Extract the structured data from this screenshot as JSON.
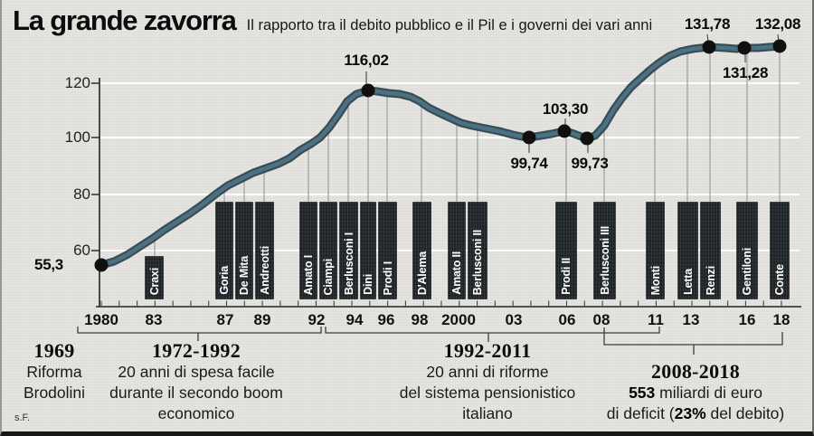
{
  "header": {
    "title": "La grande zavorra",
    "subtitle": "Il rapporto tra il debito pubblico e il Pil e i governi dei vari anni"
  },
  "colors": {
    "line_core": "#4b7182",
    "line_edge": "#263d47",
    "dot": "#101010",
    "bar": "#22282c",
    "bar_text": "#ffffff",
    "background": "#e6e4e0"
  },
  "y_axis": {
    "ticks": [
      "120",
      "100",
      "80",
      "60"
    ]
  },
  "x_axis": {
    "ticks": [
      "1980",
      "83",
      "87",
      "89",
      "92",
      "94",
      "96",
      "98",
      "2000",
      "03",
      "06",
      "08",
      "11",
      "13",
      "16",
      "18"
    ]
  },
  "governments": [
    "Craxi",
    "Goria",
    "De Mita",
    "Andreotti",
    "Amato I",
    "Ciampi",
    "Berlusconi I",
    "Dini",
    "Prodi I",
    "D'Alema",
    "Amato II",
    "Berlusconi II",
    "Prodi II",
    "Berlusconi III",
    "Monti",
    "Letta",
    "Renzi",
    "Gentiloni",
    "Conte"
  ],
  "annotations": [
    {
      "heading": "1969",
      "line1": "Riforma",
      "line2": "Brodolini"
    },
    {
      "heading": "1972-1992",
      "line1": "20 anni di spesa facile",
      "line2": "durante il secondo boom",
      "line3": "economico"
    },
    {
      "heading": "1992-2011",
      "line1": "20 anni di riforme",
      "line2": "del sistema pensionistico",
      "line3": "italiano"
    },
    {
      "heading": "2008-2018",
      "bold1": "553",
      "rest1": " miliardi di euro",
      "pre2": "di deficit (",
      "bold2": "23%",
      "post2": " del debito)"
    }
  ],
  "credit": "s.F.",
  "chart_data": {
    "type": "line",
    "title": "La grande zavorra",
    "subtitle": "Il rapporto tra il debito pubblico e il Pil e i governi dei vari anni",
    "xlabel": "",
    "ylabel": "",
    "ylim": [
      50,
      135
    ],
    "yticks": [
      60,
      80,
      100,
      120
    ],
    "xtick_labels": [
      "1980",
      "83",
      "87",
      "89",
      "92",
      "94",
      "96",
      "98",
      "2000",
      "03",
      "06",
      "08",
      "11",
      "13",
      "16",
      "18"
    ],
    "grid": true,
    "x": [
      1980,
      1981,
      1982,
      1983,
      1984,
      1985,
      1986,
      1987,
      1988,
      1989,
      1990,
      1991,
      1992,
      1993,
      1994,
      1995,
      1996,
      1997,
      1998,
      1999,
      2000,
      2001,
      2002,
      2003,
      2004,
      2005,
      2006,
      2007,
      2008,
      2009,
      2010,
      2011,
      2012,
      2013,
      2014,
      2015,
      2016,
      2017,
      2018
    ],
    "y": [
      55.3,
      56.9,
      61.3,
      65.0,
      69.5,
      73.6,
      78.0,
      82.7,
      85.8,
      88.4,
      90.9,
      95.0,
      98.7,
      105.6,
      113.5,
      116.02,
      115.1,
      114.4,
      111.9,
      108.2,
      105.0,
      103.5,
      102.2,
      100.9,
      99.74,
      100.6,
      103.3,
      99.73,
      102.5,
      112.9,
      119.2,
      124.5,
      128.6,
      130.2,
      131.78,
      131.5,
      131.28,
      131.9,
      132.08
    ],
    "y_is_estimated_except_labeled": true,
    "labeled_points": [
      {
        "x": 1980,
        "value": 55.3,
        "label": "55,3"
      },
      {
        "x": 1995,
        "value": 116.02,
        "label": "116,02"
      },
      {
        "x": 2004,
        "value": 99.74,
        "label": "99,74"
      },
      {
        "x": 2006,
        "value": 103.3,
        "label": "103,30"
      },
      {
        "x": 2007,
        "value": 99.73,
        "label": "99,73"
      },
      {
        "x": 2014,
        "value": 131.78,
        "label": "131,78"
      },
      {
        "x": 2016,
        "value": 131.28,
        "label": "131,28"
      },
      {
        "x": 2018,
        "value": 132.08,
        "label": "132,08"
      }
    ],
    "governments_timeline": [
      "Craxi",
      "Goria",
      "De Mita",
      "Andreotti",
      "Amato I",
      "Ciampi",
      "Berlusconi I",
      "Dini",
      "Prodi I",
      "D'Alema",
      "Amato II",
      "Berlusconi II",
      "Prodi II",
      "Berlusconi III",
      "Monti",
      "Letta",
      "Renzi",
      "Gentiloni",
      "Conte"
    ],
    "periods": [
      {
        "range": "1969",
        "note": "Riforma Brodolini"
      },
      {
        "range": "1972-1992",
        "note": "20 anni di spesa facile durante il secondo boom economico"
      },
      {
        "range": "1992-2011",
        "note": "20 anni di riforme del sistema pensionistico italiano"
      },
      {
        "range": "2008-2018",
        "note": "553 miliardi di euro di deficit (23% del debito)"
      }
    ]
  }
}
